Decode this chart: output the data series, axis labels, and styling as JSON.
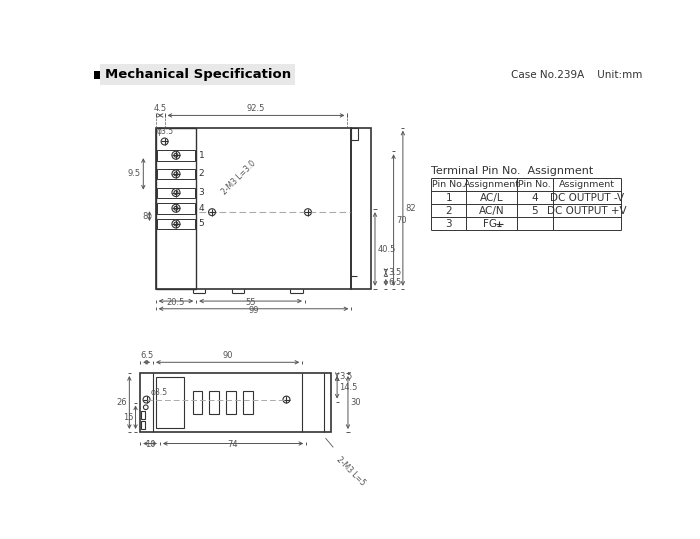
{
  "title": "Mechanical Specification",
  "case_info": "Case No.239A    Unit:mm",
  "bg_color": "#ffffff",
  "line_color": "#333333",
  "dim_color": "#555555",
  "table_title": "Terminal Pin No.  Assignment",
  "table_headers": [
    "Pin No.",
    "Assignment",
    "Pin No.",
    "Assignment"
  ],
  "table_rows": [
    [
      "1",
      "AC/L",
      "4",
      "DC OUTPUT -V"
    ],
    [
      "2",
      "AC/N",
      "5",
      "DC OUTPUT +V"
    ],
    [
      "3",
      "FG =",
      "",
      ""
    ]
  ]
}
